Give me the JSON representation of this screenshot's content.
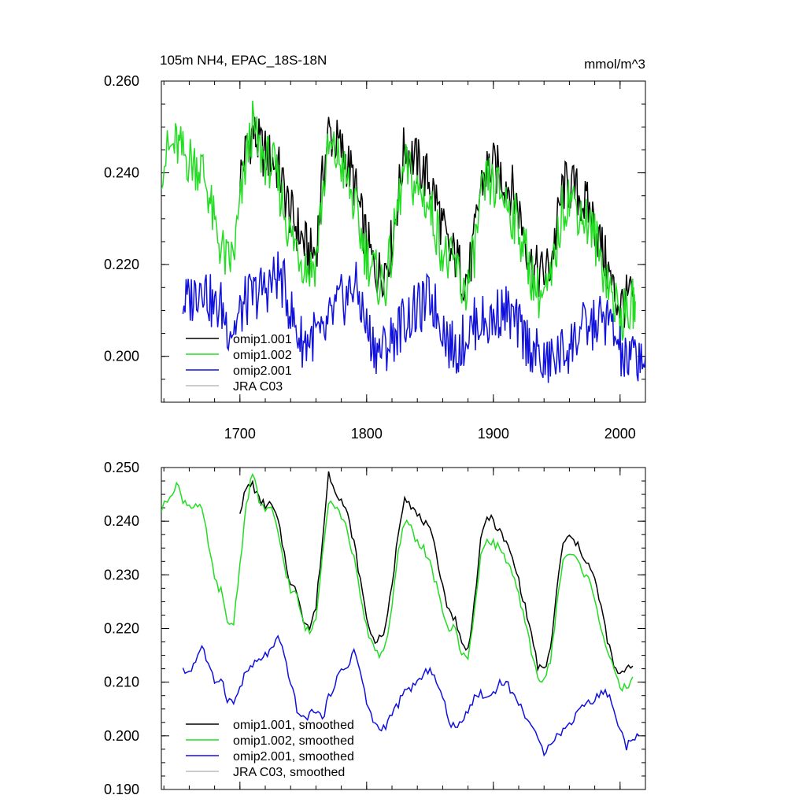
{
  "title": "105m NH4, EPAC_18S-18N",
  "units": "mmol/m^3",
  "colors": {
    "omip1_001": "#000000",
    "omip1_002": "#22dd22",
    "omip2_001": "#1111dd",
    "jra_c03": "#bbbbbb"
  },
  "chart_data": [
    {
      "type": "line",
      "panel": "raw",
      "xlim": [
        1638,
        2020
      ],
      "ylim": [
        0.19,
        0.26
      ],
      "x_ticks": [
        1700,
        1800,
        1900,
        2000
      ],
      "x_tick_labels": [
        "1700",
        "1800",
        "1900",
        "2000"
      ],
      "y_ticks": [
        0.2,
        0.22,
        0.24,
        0.26
      ],
      "y_tick_labels": [
        "0.200",
        "0.220",
        "0.240",
        "0.260"
      ],
      "legend": [
        "omip1.001",
        "omip1.002",
        "omip2.001",
        "JRA C03"
      ],
      "series": [
        {
          "name": "omip1.001",
          "color": "#000000",
          "x_start": 1700,
          "x_end": 2010,
          "x": [
            1700,
            1705,
            1710,
            1715,
            1720,
            1725,
            1730,
            1735,
            1740,
            1745,
            1750,
            1755,
            1760,
            1765,
            1770,
            1775,
            1780,
            1785,
            1790,
            1795,
            1800,
            1805,
            1810,
            1815,
            1820,
            1825,
            1830,
            1835,
            1840,
            1845,
            1850,
            1855,
            1860,
            1865,
            1870,
            1875,
            1880,
            1885,
            1890,
            1895,
            1900,
            1905,
            1910,
            1915,
            1920,
            1925,
            1930,
            1935,
            1940,
            1945,
            1950,
            1955,
            1960,
            1965,
            1970,
            1975,
            1980,
            1985,
            1990,
            1995,
            2000,
            2005,
            2010
          ],
          "y": [
            0.239,
            0.245,
            0.249,
            0.246,
            0.244,
            0.243,
            0.241,
            0.236,
            0.231,
            0.228,
            0.225,
            0.222,
            0.223,
            0.238,
            0.249,
            0.247,
            0.245,
            0.242,
            0.238,
            0.231,
            0.225,
            0.22,
            0.218,
            0.22,
            0.225,
            0.235,
            0.246,
            0.244,
            0.242,
            0.24,
            0.238,
            0.234,
            0.228,
            0.222,
            0.222,
            0.218,
            0.217,
            0.225,
            0.237,
            0.241,
            0.241,
            0.24,
            0.238,
            0.236,
            0.232,
            0.226,
            0.22,
            0.218,
            0.218,
            0.22,
            0.228,
            0.237,
            0.237,
            0.236,
            0.234,
            0.232,
            0.229,
            0.224,
            0.219,
            0.214,
            0.211,
            0.212,
            0.213
          ]
        },
        {
          "name": "omip1.002",
          "color": "#22dd22",
          "x_start": 1638,
          "x_end": 2012,
          "x": [
            1638,
            1645,
            1650,
            1655,
            1660,
            1665,
            1670,
            1675,
            1680,
            1685,
            1690,
            1695,
            1700,
            1705,
            1710,
            1715,
            1720,
            1725,
            1730,
            1735,
            1740,
            1745,
            1750,
            1755,
            1760,
            1765,
            1770,
            1775,
            1780,
            1785,
            1790,
            1795,
            1800,
            1805,
            1810,
            1815,
            1820,
            1825,
            1830,
            1835,
            1840,
            1845,
            1850,
            1855,
            1860,
            1865,
            1870,
            1875,
            1880,
            1885,
            1890,
            1895,
            1900,
            1905,
            1910,
            1915,
            1920,
            1925,
            1930,
            1935,
            1940,
            1945,
            1950,
            1955,
            1960,
            1965,
            1970,
            1975,
            1980,
            1985,
            1990,
            1995,
            2000,
            2005,
            2010,
            2012
          ],
          "y": [
            0.242,
            0.245,
            0.246,
            0.244,
            0.243,
            0.242,
            0.241,
            0.236,
            0.228,
            0.224,
            0.22,
            0.222,
            0.232,
            0.243,
            0.25,
            0.245,
            0.243,
            0.242,
            0.238,
            0.232,
            0.226,
            0.224,
            0.221,
            0.219,
            0.221,
            0.235,
            0.245,
            0.244,
            0.242,
            0.238,
            0.233,
            0.227,
            0.222,
            0.219,
            0.216,
            0.216,
            0.223,
            0.233,
            0.241,
            0.239,
            0.236,
            0.235,
            0.232,
            0.228,
            0.223,
            0.22,
            0.22,
            0.215,
            0.215,
            0.223,
            0.233,
            0.238,
            0.237,
            0.236,
            0.234,
            0.231,
            0.228,
            0.223,
            0.218,
            0.214,
            0.213,
            0.215,
            0.224,
            0.233,
            0.235,
            0.233,
            0.231,
            0.229,
            0.226,
            0.221,
            0.217,
            0.212,
            0.209,
            0.209,
            0.211,
            0.212
          ]
        },
        {
          "name": "omip2.001",
          "color": "#1111dd",
          "x_start": 1655,
          "x_end": 2020,
          "x": [
            1655,
            1660,
            1665,
            1670,
            1675,
            1680,
            1685,
            1690,
            1695,
            1700,
            1705,
            1710,
            1715,
            1720,
            1725,
            1730,
            1735,
            1740,
            1745,
            1750,
            1755,
            1760,
            1765,
            1770,
            1775,
            1780,
            1785,
            1790,
            1795,
            1800,
            1805,
            1810,
            1815,
            1820,
            1825,
            1830,
            1835,
            1840,
            1845,
            1850,
            1855,
            1860,
            1865,
            1870,
            1875,
            1880,
            1885,
            1890,
            1895,
            1900,
            1905,
            1910,
            1915,
            1920,
            1925,
            1930,
            1935,
            1940,
            1945,
            1950,
            1955,
            1960,
            1965,
            1970,
            1975,
            1980,
            1985,
            1990,
            1995,
            2000,
            2005,
            2010,
            2015,
            2020
          ],
          "y": [
            0.212,
            0.212,
            0.214,
            0.217,
            0.213,
            0.21,
            0.211,
            0.207,
            0.206,
            0.209,
            0.212,
            0.213,
            0.214,
            0.215,
            0.216,
            0.218,
            0.215,
            0.21,
            0.205,
            0.203,
            0.204,
            0.205,
            0.203,
            0.207,
            0.21,
            0.212,
            0.213,
            0.216,
            0.212,
            0.206,
            0.203,
            0.201,
            0.202,
            0.204,
            0.206,
            0.208,
            0.209,
            0.21,
            0.211,
            0.213,
            0.21,
            0.207,
            0.203,
            0.201,
            0.203,
            0.205,
            0.207,
            0.208,
            0.207,
            0.208,
            0.21,
            0.21,
            0.208,
            0.206,
            0.204,
            0.202,
            0.2,
            0.198,
            0.199,
            0.2,
            0.201,
            0.202,
            0.204,
            0.206,
            0.206,
            0.207,
            0.208,
            0.208,
            0.205,
            0.201,
            0.198,
            0.2,
            0.2,
            0.2
          ]
        },
        {
          "name": "JRA C03",
          "color": "#bbbbbb",
          "x": [],
          "y": []
        }
      ]
    },
    {
      "type": "line",
      "panel": "smoothed",
      "xlim": [
        1638,
        2020
      ],
      "ylim": [
        0.19,
        0.25
      ],
      "x_ticks": [
        1700,
        1800,
        1900,
        2000
      ],
      "x_tick_labels": [],
      "y_ticks": [
        0.19,
        0.2,
        0.21,
        0.22,
        0.23,
        0.24,
        0.25
      ],
      "y_tick_labels": [
        "0.190",
        "0.200",
        "0.210",
        "0.220",
        "0.230",
        "0.240",
        "0.250"
      ],
      "legend": [
        "omip1.001, smoothed",
        "omip1.002, smoothed",
        "omip2.001, smoothed",
        "JRA C03, smoothed"
      ],
      "series": [
        {
          "name": "omip1.001, smoothed",
          "color": "#000000",
          "x": [
            1700,
            1705,
            1710,
            1715,
            1720,
            1725,
            1730,
            1735,
            1740,
            1745,
            1750,
            1755,
            1760,
            1765,
            1770,
            1775,
            1780,
            1785,
            1790,
            1795,
            1800,
            1805,
            1810,
            1815,
            1820,
            1825,
            1830,
            1835,
            1840,
            1845,
            1850,
            1855,
            1860,
            1865,
            1870,
            1875,
            1880,
            1885,
            1890,
            1895,
            1900,
            1905,
            1910,
            1915,
            1920,
            1925,
            1930,
            1935,
            1940,
            1945,
            1950,
            1955,
            1960,
            1965,
            1970,
            1975,
            1980,
            1985,
            1990,
            1995,
            2000,
            2005,
            2010
          ],
          "y": [
            0.242,
            0.246,
            0.247,
            0.244,
            0.243,
            0.243,
            0.24,
            0.234,
            0.228,
            0.227,
            0.222,
            0.22,
            0.224,
            0.236,
            0.249,
            0.246,
            0.244,
            0.241,
            0.236,
            0.229,
            0.222,
            0.218,
            0.218,
            0.22,
            0.228,
            0.238,
            0.245,
            0.243,
            0.241,
            0.24,
            0.238,
            0.234,
            0.228,
            0.223,
            0.222,
            0.217,
            0.216,
            0.225,
            0.236,
            0.241,
            0.24,
            0.238,
            0.236,
            0.233,
            0.229,
            0.224,
            0.219,
            0.213,
            0.212,
            0.216,
            0.227,
            0.236,
            0.237,
            0.236,
            0.234,
            0.232,
            0.229,
            0.224,
            0.218,
            0.213,
            0.211,
            0.213,
            0.213
          ]
        },
        {
          "name": "omip1.002, smoothed",
          "color": "#22dd22",
          "x": [
            1638,
            1645,
            1650,
            1655,
            1660,
            1665,
            1670,
            1675,
            1680,
            1685,
            1690,
            1695,
            1700,
            1705,
            1710,
            1715,
            1720,
            1725,
            1730,
            1735,
            1740,
            1745,
            1750,
            1755,
            1760,
            1765,
            1770,
            1775,
            1780,
            1785,
            1790,
            1795,
            1800,
            1805,
            1810,
            1815,
            1820,
            1825,
            1830,
            1835,
            1840,
            1845,
            1850,
            1855,
            1860,
            1865,
            1870,
            1875,
            1880,
            1885,
            1890,
            1895,
            1900,
            1905,
            1910,
            1915,
            1920,
            1925,
            1930,
            1935,
            1940,
            1945,
            1950,
            1955,
            1960,
            1965,
            1970,
            1975,
            1980,
            1985,
            1990,
            1995,
            2000,
            2005,
            2010
          ],
          "y": [
            0.242,
            0.245,
            0.247,
            0.244,
            0.243,
            0.243,
            0.242,
            0.236,
            0.229,
            0.227,
            0.221,
            0.221,
            0.232,
            0.243,
            0.249,
            0.244,
            0.242,
            0.242,
            0.238,
            0.232,
            0.227,
            0.226,
            0.221,
            0.219,
            0.222,
            0.234,
            0.244,
            0.243,
            0.241,
            0.238,
            0.233,
            0.226,
            0.22,
            0.217,
            0.215,
            0.217,
            0.224,
            0.234,
            0.24,
            0.239,
            0.236,
            0.235,
            0.232,
            0.228,
            0.223,
            0.22,
            0.22,
            0.215,
            0.215,
            0.223,
            0.233,
            0.237,
            0.236,
            0.235,
            0.233,
            0.23,
            0.226,
            0.221,
            0.216,
            0.211,
            0.21,
            0.214,
            0.224,
            0.233,
            0.234,
            0.233,
            0.231,
            0.229,
            0.226,
            0.22,
            0.216,
            0.212,
            0.209,
            0.209,
            0.211
          ]
        },
        {
          "name": "omip2.001, smoothed",
          "color": "#1111dd",
          "x": [
            1655,
            1660,
            1665,
            1670,
            1675,
            1680,
            1685,
            1690,
            1695,
            1700,
            1705,
            1710,
            1715,
            1720,
            1725,
            1730,
            1735,
            1740,
            1745,
            1750,
            1755,
            1760,
            1765,
            1770,
            1775,
            1780,
            1785,
            1790,
            1795,
            1800,
            1805,
            1810,
            1815,
            1820,
            1825,
            1830,
            1835,
            1840,
            1845,
            1850,
            1855,
            1860,
            1865,
            1870,
            1875,
            1880,
            1885,
            1890,
            1895,
            1900,
            1905,
            1910,
            1915,
            1920,
            1925,
            1930,
            1935,
            1940,
            1945,
            1950,
            1955,
            1960,
            1965,
            1970,
            1975,
            1980,
            1985,
            1990,
            1995,
            2000,
            2005,
            2010,
            2015
          ],
          "y": [
            0.212,
            0.212,
            0.214,
            0.217,
            0.213,
            0.21,
            0.211,
            0.207,
            0.206,
            0.209,
            0.212,
            0.213,
            0.214,
            0.215,
            0.216,
            0.218,
            0.215,
            0.21,
            0.205,
            0.203,
            0.204,
            0.205,
            0.203,
            0.207,
            0.21,
            0.212,
            0.213,
            0.216,
            0.212,
            0.206,
            0.203,
            0.201,
            0.202,
            0.204,
            0.206,
            0.208,
            0.209,
            0.21,
            0.211,
            0.213,
            0.21,
            0.207,
            0.203,
            0.201,
            0.203,
            0.205,
            0.207,
            0.208,
            0.207,
            0.208,
            0.21,
            0.21,
            0.208,
            0.206,
            0.204,
            0.202,
            0.199,
            0.197,
            0.199,
            0.2,
            0.201,
            0.202,
            0.204,
            0.206,
            0.206,
            0.207,
            0.208,
            0.208,
            0.205,
            0.201,
            0.198,
            0.2,
            0.2
          ]
        },
        {
          "name": "JRA C03, smoothed",
          "color": "#bbbbbb",
          "x": [],
          "y": []
        }
      ]
    }
  ]
}
